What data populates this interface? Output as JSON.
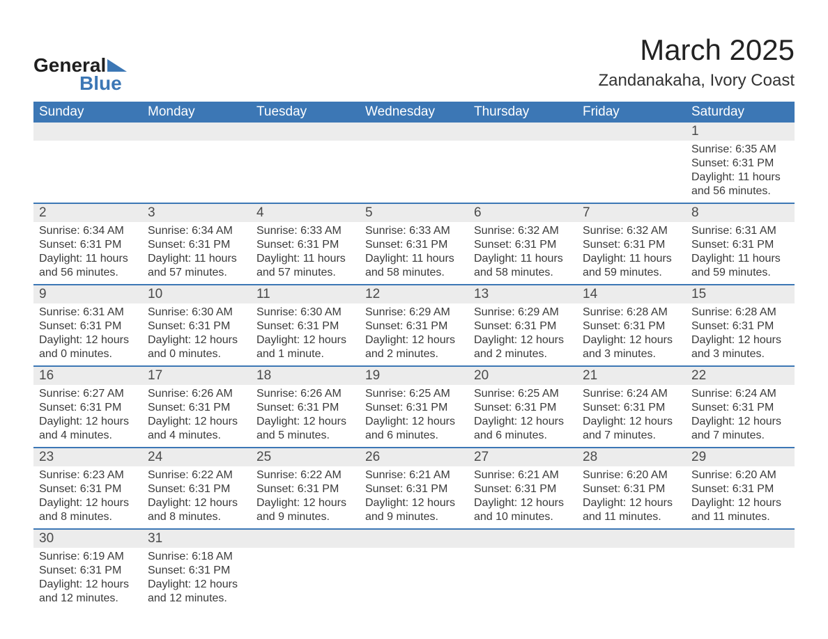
{
  "logo": {
    "word1": "General",
    "word2": "Blue",
    "tri_color": "#3c77b5"
  },
  "title": "March 2025",
  "location": "Zandanakaha, Ivory Coast",
  "colors": {
    "header_bg": "#3c77b5",
    "header_text": "#ffffff",
    "daynum_bg": "#ececec",
    "text": "#3a3a3a",
    "rule": "#3c77b5"
  },
  "fonts": {
    "title_pt": 42,
    "location_pt": 24,
    "dow_pt": 19,
    "daynum_pt": 19,
    "body_pt": 16
  },
  "days_of_week": [
    "Sunday",
    "Monday",
    "Tuesday",
    "Wednesday",
    "Thursday",
    "Friday",
    "Saturday"
  ],
  "weeks": [
    [
      null,
      null,
      null,
      null,
      null,
      null,
      {
        "n": "1",
        "sr": "Sunrise: 6:35 AM",
        "ss": "Sunset: 6:31 PM",
        "dl1": "Daylight: 11 hours",
        "dl2": "and 56 minutes."
      }
    ],
    [
      {
        "n": "2",
        "sr": "Sunrise: 6:34 AM",
        "ss": "Sunset: 6:31 PM",
        "dl1": "Daylight: 11 hours",
        "dl2": "and 56 minutes."
      },
      {
        "n": "3",
        "sr": "Sunrise: 6:34 AM",
        "ss": "Sunset: 6:31 PM",
        "dl1": "Daylight: 11 hours",
        "dl2": "and 57 minutes."
      },
      {
        "n": "4",
        "sr": "Sunrise: 6:33 AM",
        "ss": "Sunset: 6:31 PM",
        "dl1": "Daylight: 11 hours",
        "dl2": "and 57 minutes."
      },
      {
        "n": "5",
        "sr": "Sunrise: 6:33 AM",
        "ss": "Sunset: 6:31 PM",
        "dl1": "Daylight: 11 hours",
        "dl2": "and 58 minutes."
      },
      {
        "n": "6",
        "sr": "Sunrise: 6:32 AM",
        "ss": "Sunset: 6:31 PM",
        "dl1": "Daylight: 11 hours",
        "dl2": "and 58 minutes."
      },
      {
        "n": "7",
        "sr": "Sunrise: 6:32 AM",
        "ss": "Sunset: 6:31 PM",
        "dl1": "Daylight: 11 hours",
        "dl2": "and 59 minutes."
      },
      {
        "n": "8",
        "sr": "Sunrise: 6:31 AM",
        "ss": "Sunset: 6:31 PM",
        "dl1": "Daylight: 11 hours",
        "dl2": "and 59 minutes."
      }
    ],
    [
      {
        "n": "9",
        "sr": "Sunrise: 6:31 AM",
        "ss": "Sunset: 6:31 PM",
        "dl1": "Daylight: 12 hours",
        "dl2": "and 0 minutes."
      },
      {
        "n": "10",
        "sr": "Sunrise: 6:30 AM",
        "ss": "Sunset: 6:31 PM",
        "dl1": "Daylight: 12 hours",
        "dl2": "and 0 minutes."
      },
      {
        "n": "11",
        "sr": "Sunrise: 6:30 AM",
        "ss": "Sunset: 6:31 PM",
        "dl1": "Daylight: 12 hours",
        "dl2": "and 1 minute."
      },
      {
        "n": "12",
        "sr": "Sunrise: 6:29 AM",
        "ss": "Sunset: 6:31 PM",
        "dl1": "Daylight: 12 hours",
        "dl2": "and 2 minutes."
      },
      {
        "n": "13",
        "sr": "Sunrise: 6:29 AM",
        "ss": "Sunset: 6:31 PM",
        "dl1": "Daylight: 12 hours",
        "dl2": "and 2 minutes."
      },
      {
        "n": "14",
        "sr": "Sunrise: 6:28 AM",
        "ss": "Sunset: 6:31 PM",
        "dl1": "Daylight: 12 hours",
        "dl2": "and 3 minutes."
      },
      {
        "n": "15",
        "sr": "Sunrise: 6:28 AM",
        "ss": "Sunset: 6:31 PM",
        "dl1": "Daylight: 12 hours",
        "dl2": "and 3 minutes."
      }
    ],
    [
      {
        "n": "16",
        "sr": "Sunrise: 6:27 AM",
        "ss": "Sunset: 6:31 PM",
        "dl1": "Daylight: 12 hours",
        "dl2": "and 4 minutes."
      },
      {
        "n": "17",
        "sr": "Sunrise: 6:26 AM",
        "ss": "Sunset: 6:31 PM",
        "dl1": "Daylight: 12 hours",
        "dl2": "and 4 minutes."
      },
      {
        "n": "18",
        "sr": "Sunrise: 6:26 AM",
        "ss": "Sunset: 6:31 PM",
        "dl1": "Daylight: 12 hours",
        "dl2": "and 5 minutes."
      },
      {
        "n": "19",
        "sr": "Sunrise: 6:25 AM",
        "ss": "Sunset: 6:31 PM",
        "dl1": "Daylight: 12 hours",
        "dl2": "and 6 minutes."
      },
      {
        "n": "20",
        "sr": "Sunrise: 6:25 AM",
        "ss": "Sunset: 6:31 PM",
        "dl1": "Daylight: 12 hours",
        "dl2": "and 6 minutes."
      },
      {
        "n": "21",
        "sr": "Sunrise: 6:24 AM",
        "ss": "Sunset: 6:31 PM",
        "dl1": "Daylight: 12 hours",
        "dl2": "and 7 minutes."
      },
      {
        "n": "22",
        "sr": "Sunrise: 6:24 AM",
        "ss": "Sunset: 6:31 PM",
        "dl1": "Daylight: 12 hours",
        "dl2": "and 7 minutes."
      }
    ],
    [
      {
        "n": "23",
        "sr": "Sunrise: 6:23 AM",
        "ss": "Sunset: 6:31 PM",
        "dl1": "Daylight: 12 hours",
        "dl2": "and 8 minutes."
      },
      {
        "n": "24",
        "sr": "Sunrise: 6:22 AM",
        "ss": "Sunset: 6:31 PM",
        "dl1": "Daylight: 12 hours",
        "dl2": "and 8 minutes."
      },
      {
        "n": "25",
        "sr": "Sunrise: 6:22 AM",
        "ss": "Sunset: 6:31 PM",
        "dl1": "Daylight: 12 hours",
        "dl2": "and 9 minutes."
      },
      {
        "n": "26",
        "sr": "Sunrise: 6:21 AM",
        "ss": "Sunset: 6:31 PM",
        "dl1": "Daylight: 12 hours",
        "dl2": "and 9 minutes."
      },
      {
        "n": "27",
        "sr": "Sunrise: 6:21 AM",
        "ss": "Sunset: 6:31 PM",
        "dl1": "Daylight: 12 hours",
        "dl2": "and 10 minutes."
      },
      {
        "n": "28",
        "sr": "Sunrise: 6:20 AM",
        "ss": "Sunset: 6:31 PM",
        "dl1": "Daylight: 12 hours",
        "dl2": "and 11 minutes."
      },
      {
        "n": "29",
        "sr": "Sunrise: 6:20 AM",
        "ss": "Sunset: 6:31 PM",
        "dl1": "Daylight: 12 hours",
        "dl2": "and 11 minutes."
      }
    ],
    [
      {
        "n": "30",
        "sr": "Sunrise: 6:19 AM",
        "ss": "Sunset: 6:31 PM",
        "dl1": "Daylight: 12 hours",
        "dl2": "and 12 minutes."
      },
      {
        "n": "31",
        "sr": "Sunrise: 6:18 AM",
        "ss": "Sunset: 6:31 PM",
        "dl1": "Daylight: 12 hours",
        "dl2": "and 12 minutes."
      },
      null,
      null,
      null,
      null,
      null
    ]
  ]
}
